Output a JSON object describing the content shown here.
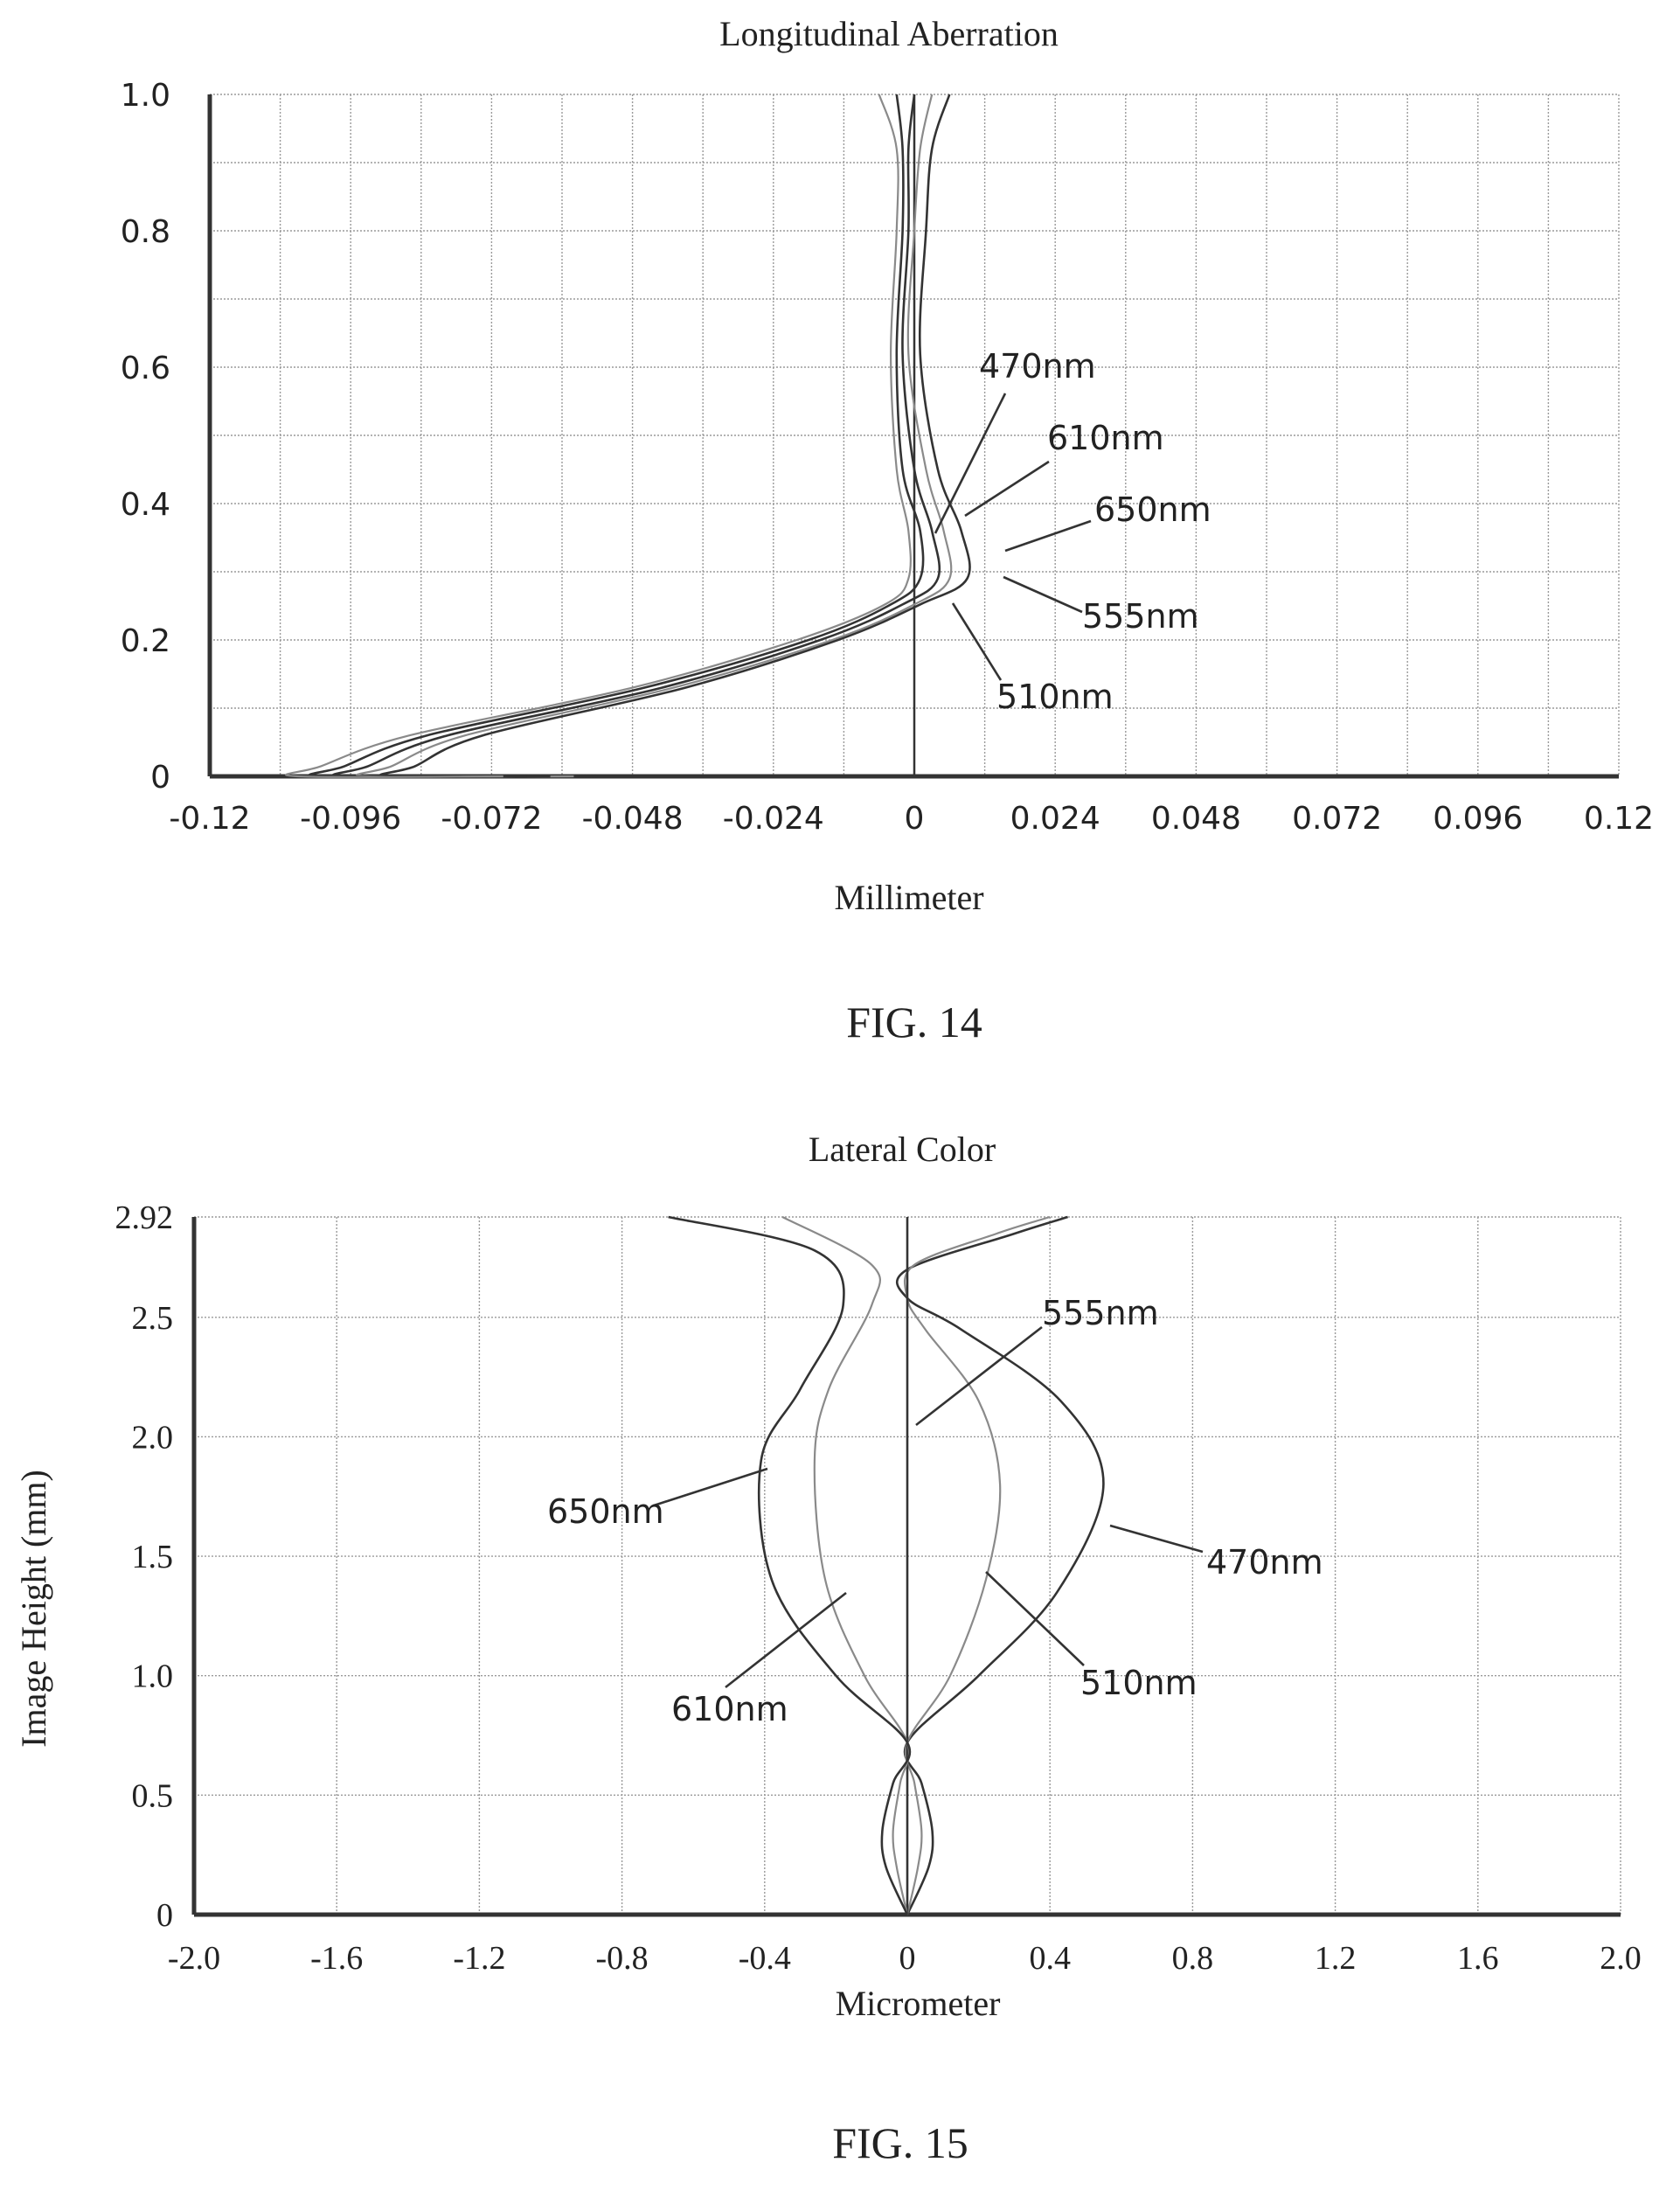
{
  "figures": [
    {
      "caption": "FIG. 14",
      "chart": 0
    },
    {
      "caption": "FIG. 15",
      "chart": 1
    }
  ],
  "chart_data": [
    {
      "type": "line",
      "title": "Longitudinal Aberration",
      "xlabel": "Millimeter",
      "ylabel": "",
      "xlim": [
        -0.12,
        0.12
      ],
      "ylim": [
        0,
        1.0
      ],
      "xticks": [
        "-0.12",
        "-0.096",
        "-0.072",
        "-0.048",
        "-0.024",
        "0",
        "0.024",
        "0.048",
        "0.072",
        "0.096",
        "0.12"
      ],
      "yticks": [
        "0",
        "0.2",
        "0.4",
        "0.6",
        "0.8",
        "1.0"
      ],
      "grid": true,
      "series": [
        {
          "name": "470nm",
          "style": "solid",
          "points": [
            [
              0.0,
              0.0
            ],
            [
              -0.0735,
              0.06
            ],
            [
              -0.039,
              0.13
            ],
            [
              -0.013,
              0.2
            ],
            [
              0.001,
              0.252
            ],
            [
              0.009,
              0.29
            ],
            [
              0.008,
              0.36
            ],
            [
              0.004,
              0.45
            ],
            [
              0.001,
              0.62
            ],
            [
              0.002,
              0.8
            ],
            [
              0.003,
              0.92
            ],
            [
              0.006,
              1.0
            ]
          ],
          "x_at_y0": -0.089
        },
        {
          "name": "510nm",
          "style": "dotted",
          "points": [
            [
              0.0,
              0.0
            ],
            [
              -0.0765,
              0.06
            ],
            [
              -0.041,
              0.13
            ],
            [
              -0.014,
              0.2
            ],
            [
              0.0,
              0.252
            ],
            [
              0.006,
              0.29
            ],
            [
              0.005,
              0.36
            ],
            [
              0.002,
              0.45
            ],
            [
              -0.001,
              0.62
            ],
            [
              0.0,
              0.8
            ],
            [
              0.001,
              0.92
            ],
            [
              0.003,
              1.0
            ]
          ],
          "x_at_y0": -0.093
        },
        {
          "name": "555nm",
          "style": "solid",
          "points": [
            [
              0.0,
              0.0
            ],
            [
              -0.0795,
              0.06
            ],
            [
              -0.043,
              0.13
            ],
            [
              -0.016,
              0.2
            ],
            [
              -0.002,
              0.252
            ],
            [
              0.004,
              0.29
            ],
            [
              0.003,
              0.36
            ],
            [
              0.0,
              0.45
            ],
            [
              -0.002,
              0.62
            ],
            [
              -0.001,
              0.8
            ],
            [
              -0.001,
              0.92
            ],
            [
              0.0,
              1.0
            ]
          ],
          "x_at_y0": -0.097
        },
        {
          "name": "610nm",
          "style": "solid",
          "points": [
            [
              0.0,
              0.0
            ],
            [
              -0.083,
              0.06
            ],
            [
              -0.046,
              0.13
            ],
            [
              -0.018,
              0.2
            ],
            [
              -0.004,
              0.252
            ],
            [
              0.001,
              0.29
            ],
            [
              0.001,
              0.36
            ],
            [
              -0.002,
              0.45
            ],
            [
              -0.003,
              0.62
            ],
            [
              -0.002,
              0.8
            ],
            [
              -0.002,
              0.92
            ],
            [
              -0.003,
              1.0
            ]
          ],
          "x_at_y0": -0.101
        },
        {
          "name": "650nm",
          "style": "dotted",
          "points": [
            [
              0.0,
              0.0
            ],
            [
              -0.086,
              0.06
            ],
            [
              -0.048,
              0.13
            ],
            [
              -0.02,
              0.2
            ],
            [
              -0.005,
              0.252
            ],
            [
              -0.001,
              0.29
            ],
            [
              -0.001,
              0.36
            ],
            [
              -0.003,
              0.45
            ],
            [
              -0.004,
              0.62
            ],
            [
              -0.003,
              0.8
            ],
            [
              -0.003,
              0.92
            ],
            [
              -0.006,
              1.0
            ]
          ],
          "x_at_y0": -0.105
        }
      ],
      "labels": [
        {
          "text": "470nm"
        },
        {
          "text": "610nm"
        },
        {
          "text": "650nm"
        },
        {
          "text": "555nm"
        },
        {
          "text": "510nm"
        }
      ]
    },
    {
      "type": "line",
      "title": "Lateral Color",
      "xlabel": "Micrometer",
      "ylabel": "Image Height (mm)",
      "xlim": [
        -2.0,
        2.0
      ],
      "ylim": [
        0,
        2.92
      ],
      "xticks": [
        "-2.0",
        "-1.6",
        "-1.2",
        "-0.8",
        "-0.4",
        "0",
        "0.4",
        "0.8",
        "1.2",
        "1.6",
        "2.0"
      ],
      "yticks": [
        "0",
        "0.5",
        "1.0",
        "1.5",
        "2.0",
        "2.5",
        "2.92"
      ],
      "grid": true,
      "series": [
        {
          "name": "470nm",
          "style": "solid",
          "points": [
            [
              0.0,
              0.0
            ],
            [
              0.06,
              0.2
            ],
            [
              0.07,
              0.35
            ],
            [
              0.04,
              0.55
            ],
            [
              0.0,
              0.72
            ],
            [
              0.2,
              1.0
            ],
            [
              0.42,
              1.35
            ],
            [
              0.55,
              1.8
            ],
            [
              0.43,
              2.15
            ],
            [
              0.15,
              2.45
            ],
            [
              0.0,
              2.58
            ],
            [
              0.0,
              2.7
            ],
            [
              0.3,
              2.85
            ],
            [
              0.45,
              2.92
            ]
          ]
        },
        {
          "name": "510nm",
          "style": "dotted",
          "points": [
            [
              0.0,
              0.0
            ],
            [
              0.03,
              0.2
            ],
            [
              0.04,
              0.35
            ],
            [
              0.02,
              0.55
            ],
            [
              0.0,
              0.72
            ],
            [
              0.12,
              1.0
            ],
            [
              0.22,
              1.4
            ],
            [
              0.26,
              1.8
            ],
            [
              0.2,
              2.15
            ],
            [
              0.05,
              2.45
            ],
            [
              0.0,
              2.58
            ],
            [
              0.02,
              2.72
            ],
            [
              0.25,
              2.85
            ],
            [
              0.4,
              2.92
            ]
          ]
        },
        {
          "name": "555nm",
          "style": "solid",
          "points": [
            [
              0.0,
              0.0
            ],
            [
              0.0,
              2.92
            ]
          ]
        },
        {
          "name": "610nm",
          "style": "dotted",
          "points": [
            [
              0.0,
              0.0
            ],
            [
              -0.03,
              0.2
            ],
            [
              -0.04,
              0.35
            ],
            [
              -0.02,
              0.55
            ],
            [
              0.0,
              0.72
            ],
            [
              -0.12,
              1.0
            ],
            [
              -0.23,
              1.4
            ],
            [
              -0.26,
              1.9
            ],
            [
              -0.22,
              2.2
            ],
            [
              -0.1,
              2.55
            ],
            [
              -0.1,
              2.72
            ],
            [
              -0.35,
              2.92
            ]
          ]
        },
        {
          "name": "650nm",
          "style": "solid",
          "points": [
            [
              0.0,
              0.0
            ],
            [
              -0.06,
              0.2
            ],
            [
              -0.07,
              0.35
            ],
            [
              -0.04,
              0.55
            ],
            [
              0.0,
              0.72
            ],
            [
              -0.2,
              1.0
            ],
            [
              -0.38,
              1.4
            ],
            [
              -0.41,
              1.9
            ],
            [
              -0.3,
              2.2
            ],
            [
              -0.18,
              2.55
            ],
            [
              -0.26,
              2.78
            ],
            [
              -0.67,
              2.92
            ]
          ]
        }
      ],
      "labels": [
        {
          "text": "555nm"
        },
        {
          "text": "650nm"
        },
        {
          "text": "470nm"
        },
        {
          "text": "510nm"
        },
        {
          "text": "610nm"
        }
      ]
    }
  ]
}
